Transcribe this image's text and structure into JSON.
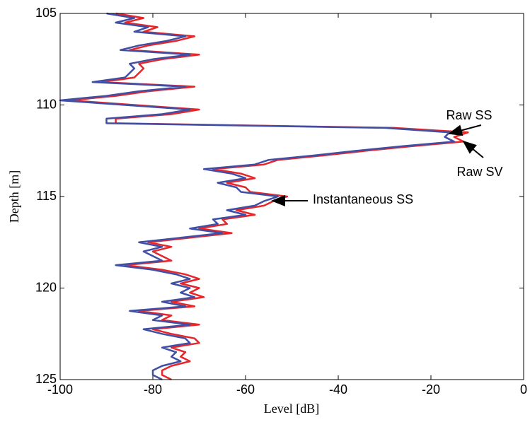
{
  "chart_data": {
    "type": "line",
    "xlabel": "Level [dB]",
    "ylabel": "Depth [m]",
    "depth": [
      105,
      105.25,
      105.5,
      105.75,
      106,
      106.25,
      106.5,
      106.75,
      107,
      107.25,
      107.5,
      107.75,
      108,
      108.25,
      108.5,
      108.75,
      109,
      109.25,
      109.5,
      109.75,
      110,
      110.25,
      110.5,
      110.75,
      111,
      111.25,
      111.5,
      111.75,
      112,
      112.25,
      112.5,
      112.75,
      113,
      113.25,
      113.5,
      113.75,
      114,
      114.25,
      114.5,
      114.75,
      115,
      115.25,
      115.5,
      115.75,
      116,
      116.25,
      116.5,
      116.75,
      117,
      117.25,
      117.5,
      117.75,
      118,
      118.25,
      118.5,
      118.75,
      119,
      119.25,
      119.5,
      119.75,
      120,
      120.25,
      120.5,
      120.75,
      121,
      121.25,
      121.5,
      121.75,
      122,
      122.25,
      122.5,
      122.75,
      123,
      123.25,
      123.5,
      123.75,
      124,
      124.25,
      124.5,
      124.75,
      125
    ],
    "series": [
      {
        "color": "#e8262a",
        "values": [
          -88,
          -82,
          -86,
          -79,
          -82,
          -71,
          -75,
          -81,
          -85,
          -70,
          -78,
          -83,
          -82,
          -83,
          -84,
          -91,
          -71,
          -81,
          -88,
          -98,
          -84,
          -70,
          -76,
          -88,
          -88,
          -28,
          -12,
          -15,
          -13,
          -24,
          -34,
          -43,
          -53,
          -56,
          -67,
          -61,
          -58,
          -64,
          -60,
          -59,
          -51,
          -54,
          -56,
          -62,
          -58,
          -65,
          -64,
          -70,
          -63,
          -72,
          -81,
          -76,
          -80,
          -78,
          -76,
          -86,
          -78,
          -73,
          -70,
          -74,
          -70,
          -72,
          -69,
          -76,
          -71,
          -83,
          -76,
          -78,
          -70,
          -80,
          -76,
          -71,
          -70,
          -76,
          -73,
          -74,
          -72,
          -76,
          -78,
          -78,
          -76
        ]
      },
      {
        "color": "#3f4fa5",
        "values": [
          -90,
          -84,
          -88,
          -81,
          -84,
          -73,
          -77,
          -83,
          -87,
          -72,
          -80,
          -85,
          -84,
          -85,
          -86,
          -93,
          -73,
          -83,
          -90,
          -100,
          -86,
          -72,
          -78,
          -90,
          -90,
          -30,
          -16,
          -17,
          -15,
          -26,
          -36,
          -45,
          -55,
          -58,
          -69,
          -63,
          -60,
          -66,
          -62,
          -61,
          -53,
          -56,
          -58,
          -64,
          -60,
          -67,
          -66,
          -72,
          -65,
          -74,
          -83,
          -78,
          -82,
          -80,
          -78,
          -88,
          -80,
          -75,
          -72,
          -76,
          -72,
          -74,
          -71,
          -78,
          -73,
          -85,
          -78,
          -80,
          -72,
          -82,
          -78,
          -73,
          -72,
          -78,
          -75,
          -76,
          -74,
          -78,
          -80,
          -80,
          -78
        ]
      }
    ],
    "annotations": [
      "Raw SS",
      "Raw SV",
      "Instantaneous SS"
    ],
    "xlim": [
      -100,
      0
    ],
    "xticks": [
      -100,
      -80,
      -60,
      -40,
      -20,
      0
    ],
    "ylim": [
      105,
      125
    ],
    "yticks": [
      105,
      110,
      115,
      120,
      125
    ],
    "y_inverted": true
  }
}
